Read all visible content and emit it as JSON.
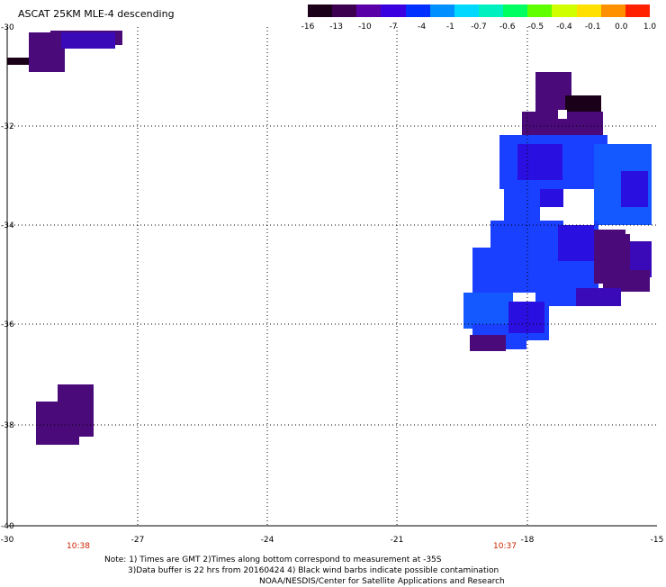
{
  "title": "ASCAT 25KM MLE-4 descending",
  "colorbar": {
    "colors": [
      "#1a0018",
      "#3d0050",
      "#5a00a8",
      "#3a00e0",
      "#0030ff",
      "#0090ff",
      "#00d8ff",
      "#00f0c0",
      "#00ff60",
      "#60ff00",
      "#d0ff00",
      "#ffe000",
      "#ff9000",
      "#ff2000"
    ],
    "labels": [
      "-16",
      "-13",
      "-10",
      "-7",
      "-4",
      "-1",
      "-0.7",
      "-0.6",
      "-0.5",
      "-0.4",
      "-0.1",
      "0.0",
      "1.0"
    ]
  },
  "axes": {
    "lon_ticks": [
      "-30",
      "-27",
      "-24",
      "-21",
      "-18",
      "-15"
    ],
    "lat_ticks": [
      "-30",
      "-32",
      "-34",
      "-36",
      "-38",
      "-40"
    ]
  },
  "time_labels": [
    "10:38",
    "10:37"
  ],
  "notes": {
    "line1": "Note: 1) Times are GMT 2)Times along bottom correspond to measurement at -35S",
    "line2": "3)Data buffer is 22 hrs from 20160424 4) Black wind barbs indicate possible contamination",
    "line3": "NOAA/NESDIS/Center for Satellite Applications and Research"
  },
  "swath": {
    "colors": {
      "dark": "#1a0018",
      "purple": "#4a0a7a",
      "violet": "#3a0ab8",
      "indigo": "#2a10e0",
      "blue": "#1a40ff",
      "mid": "#1458ff"
    }
  }
}
